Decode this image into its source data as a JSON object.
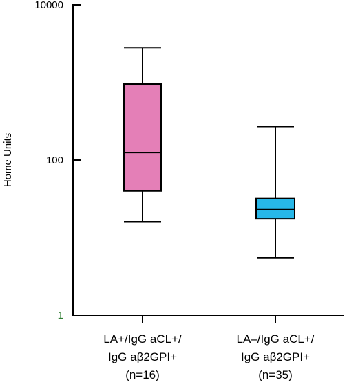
{
  "chart_data": {
    "type": "box",
    "ylabel": "Home Units",
    "yscale": "log",
    "ylim": [
      1,
      10000
    ],
    "yticks": [
      {
        "value": 10000,
        "label": "10000",
        "color": "#000000"
      },
      {
        "value": 100,
        "label": "100",
        "color": "#000000"
      },
      {
        "value": 1,
        "label": "1",
        "color": "#2e7d32"
      }
    ],
    "boxes": [
      {
        "label_lines": [
          "LA+/IgG aCL+/",
          "IgG aβ2GPI+",
          "(n=16)"
        ],
        "min": 16,
        "q1": 40,
        "median": 125,
        "q3": 950,
        "max": 2800,
        "color": "#e47fb7"
      },
      {
        "label_lines": [
          "LA–/IgG aCL+/",
          "IgG aβ2GPI+",
          "(n=35)"
        ],
        "min": 5.5,
        "q1": 17.5,
        "median": 23,
        "q3": 32,
        "max": 270,
        "color": "#27b7e8"
      }
    ]
  }
}
